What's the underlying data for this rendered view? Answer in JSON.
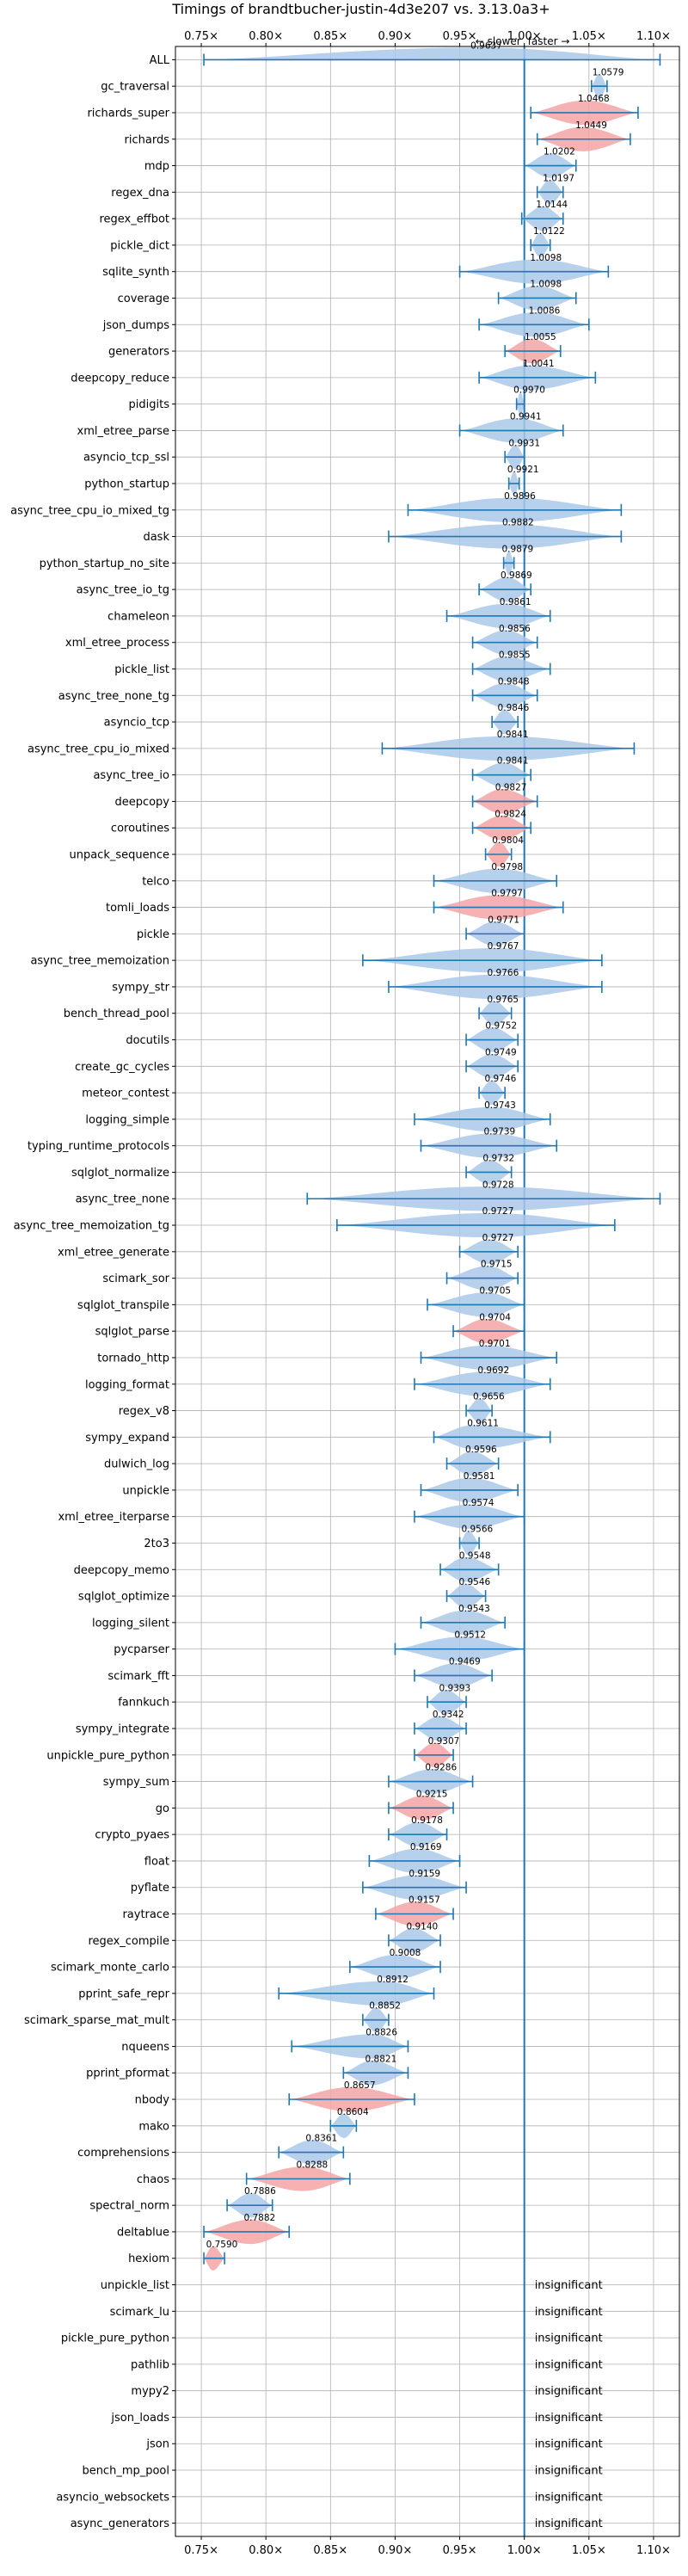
{
  "chart_data": {
    "type": "violin",
    "title": "Timings of brandtbucher-justin-4d3e207 vs. 3.13.0a3+",
    "xlabel": "",
    "ylabel": "",
    "xlim": [
      0.73,
      1.12
    ],
    "x_ticks": [
      0.75,
      0.8,
      0.85,
      0.9,
      0.95,
      1.0,
      1.05,
      1.1
    ],
    "x_tick_labels": [
      "0.75×",
      "0.80×",
      "0.85×",
      "0.90×",
      "0.95×",
      "1.00×",
      "1.05×",
      "1.10×"
    ],
    "annotation_slower": "← slower",
    "annotation_faster": "faster →",
    "grid": true,
    "colors": {
      "neutral": "#aac8e8",
      "regression": "#f5a5a5",
      "line": "#1f77b4",
      "grid": "#b0b0b0"
    },
    "benchmarks": [
      {
        "name": "ALL",
        "value": 0.9637,
        "label": "0.9637",
        "min": 0.752,
        "max": 1.105,
        "regression": false
      },
      {
        "name": "gc_traversal",
        "value": 1.0579,
        "label": "1.0579",
        "min": 1.052,
        "max": 1.064,
        "regression": false
      },
      {
        "name": "richards_super",
        "value": 1.0468,
        "label": "1.0468",
        "min": 1.005,
        "max": 1.088,
        "regression": true
      },
      {
        "name": "richards",
        "value": 1.0449,
        "label": "1.0449",
        "min": 1.01,
        "max": 1.082,
        "regression": true
      },
      {
        "name": "mdp",
        "value": 1.0202,
        "label": "1.0202",
        "min": 1.0,
        "max": 1.04,
        "regression": false
      },
      {
        "name": "regex_dna",
        "value": 1.0197,
        "label": "1.0197",
        "min": 1.01,
        "max": 1.03,
        "regression": false
      },
      {
        "name": "regex_effbot",
        "value": 1.0144,
        "label": "1.0144",
        "min": 0.998,
        "max": 1.03,
        "regression": false
      },
      {
        "name": "pickle_dict",
        "value": 1.0122,
        "label": "1.0122",
        "min": 1.005,
        "max": 1.02,
        "regression": false
      },
      {
        "name": "sqlite_synth",
        "value": 1.0098,
        "label": "1.0098",
        "min": 0.95,
        "max": 1.065,
        "regression": false
      },
      {
        "name": "coverage",
        "value": 1.0098,
        "label": "1.0098",
        "min": 0.98,
        "max": 1.04,
        "regression": false
      },
      {
        "name": "json_dumps",
        "value": 1.0086,
        "label": "1.0086",
        "min": 0.965,
        "max": 1.05,
        "regression": false
      },
      {
        "name": "generators",
        "value": 1.0055,
        "label": "1.0055",
        "min": 0.985,
        "max": 1.028,
        "regression": true
      },
      {
        "name": "deepcopy_reduce",
        "value": 1.0041,
        "label": "1.0041",
        "min": 0.965,
        "max": 1.055,
        "regression": false
      },
      {
        "name": "pidigits",
        "value": 0.997,
        "label": "0.9970",
        "min": 0.994,
        "max": 1.0,
        "regression": false
      },
      {
        "name": "xml_etree_parse",
        "value": 0.9941,
        "label": "0.9941",
        "min": 0.95,
        "max": 1.03,
        "regression": false
      },
      {
        "name": "asyncio_tcp_ssl",
        "value": 0.9931,
        "label": "0.9931",
        "min": 0.985,
        "max": 1.0,
        "regression": false
      },
      {
        "name": "python_startup",
        "value": 0.9921,
        "label": "0.9921",
        "min": 0.988,
        "max": 0.996,
        "regression": false
      },
      {
        "name": "async_tree_cpu_io_mixed_tg",
        "value": 0.9896,
        "label": "0.9896",
        "min": 0.91,
        "max": 1.075,
        "regression": false
      },
      {
        "name": "dask",
        "value": 0.9882,
        "label": "0.9882",
        "min": 0.895,
        "max": 1.075,
        "regression": false
      },
      {
        "name": "python_startup_no_site",
        "value": 0.9879,
        "label": "0.9879",
        "min": 0.984,
        "max": 0.992,
        "regression": false
      },
      {
        "name": "async_tree_io_tg",
        "value": 0.9869,
        "label": "0.9869",
        "min": 0.965,
        "max": 1.005,
        "regression": false
      },
      {
        "name": "chameleon",
        "value": 0.9861,
        "label": "0.9861",
        "min": 0.94,
        "max": 1.02,
        "regression": false
      },
      {
        "name": "xml_etree_process",
        "value": 0.9856,
        "label": "0.9856",
        "min": 0.96,
        "max": 1.01,
        "regression": false
      },
      {
        "name": "pickle_list",
        "value": 0.9855,
        "label": "0.9855",
        "min": 0.96,
        "max": 1.02,
        "regression": false
      },
      {
        "name": "async_tree_none_tg",
        "value": 0.9848,
        "label": "0.9848",
        "min": 0.96,
        "max": 1.01,
        "regression": false
      },
      {
        "name": "asyncio_tcp",
        "value": 0.9846,
        "label": "0.9846",
        "min": 0.975,
        "max": 0.995,
        "regression": false
      },
      {
        "name": "async_tree_cpu_io_mixed",
        "value": 0.9841,
        "label": "0.9841",
        "min": 0.89,
        "max": 1.085,
        "regression": false
      },
      {
        "name": "async_tree_io",
        "value": 0.9841,
        "label": "0.9841",
        "min": 0.96,
        "max": 1.005,
        "regression": false
      },
      {
        "name": "deepcopy",
        "value": 0.9827,
        "label": "0.9827",
        "min": 0.96,
        "max": 1.01,
        "regression": true
      },
      {
        "name": "coroutines",
        "value": 0.9824,
        "label": "0.9824",
        "min": 0.96,
        "max": 1.005,
        "regression": true
      },
      {
        "name": "unpack_sequence",
        "value": 0.9804,
        "label": "0.9804",
        "min": 0.97,
        "max": 0.99,
        "regression": true
      },
      {
        "name": "telco",
        "value": 0.9798,
        "label": "0.9798",
        "min": 0.93,
        "max": 1.025,
        "regression": false
      },
      {
        "name": "tomli_loads",
        "value": 0.9797,
        "label": "0.9797",
        "min": 0.93,
        "max": 1.03,
        "regression": true
      },
      {
        "name": "pickle",
        "value": 0.9771,
        "label": "0.9771",
        "min": 0.955,
        "max": 1.0,
        "regression": false
      },
      {
        "name": "async_tree_memoization",
        "value": 0.9767,
        "label": "0.9767",
        "min": 0.875,
        "max": 1.06,
        "regression": false
      },
      {
        "name": "sympy_str",
        "value": 0.9766,
        "label": "0.9766",
        "min": 0.895,
        "max": 1.06,
        "regression": false
      },
      {
        "name": "bench_thread_pool",
        "value": 0.9765,
        "label": "0.9765",
        "min": 0.965,
        "max": 0.99,
        "regression": false
      },
      {
        "name": "docutils",
        "value": 0.9752,
        "label": "0.9752",
        "min": 0.955,
        "max": 0.995,
        "regression": false
      },
      {
        "name": "create_gc_cycles",
        "value": 0.9749,
        "label": "0.9749",
        "min": 0.955,
        "max": 0.995,
        "regression": false
      },
      {
        "name": "meteor_contest",
        "value": 0.9746,
        "label": "0.9746",
        "min": 0.965,
        "max": 0.985,
        "regression": false
      },
      {
        "name": "logging_simple",
        "value": 0.9743,
        "label": "0.9743",
        "min": 0.915,
        "max": 1.02,
        "regression": false
      },
      {
        "name": "typing_runtime_protocols",
        "value": 0.9739,
        "label": "0.9739",
        "min": 0.92,
        "max": 1.025,
        "regression": false
      },
      {
        "name": "sqlglot_normalize",
        "value": 0.9732,
        "label": "0.9732",
        "min": 0.955,
        "max": 0.99,
        "regression": false
      },
      {
        "name": "async_tree_none",
        "value": 0.9728,
        "label": "0.9728",
        "min": 0.832,
        "max": 1.105,
        "regression": false
      },
      {
        "name": "async_tree_memoization_tg",
        "value": 0.9727,
        "label": "0.9727",
        "min": 0.855,
        "max": 1.07,
        "regression": false
      },
      {
        "name": "xml_etree_generate",
        "value": 0.9727,
        "label": "0.9727",
        "min": 0.95,
        "max": 0.995,
        "regression": false
      },
      {
        "name": "scimark_sor",
        "value": 0.9715,
        "label": "0.9715",
        "min": 0.94,
        "max": 0.995,
        "regression": false
      },
      {
        "name": "sqlglot_transpile",
        "value": 0.9705,
        "label": "0.9705",
        "min": 0.925,
        "max": 1.0,
        "regression": false
      },
      {
        "name": "sqlglot_parse",
        "value": 0.9704,
        "label": "0.9704",
        "min": 0.945,
        "max": 1.0,
        "regression": true
      },
      {
        "name": "tornado_http",
        "value": 0.9701,
        "label": "0.9701",
        "min": 0.92,
        "max": 1.025,
        "regression": false
      },
      {
        "name": "logging_format",
        "value": 0.9692,
        "label": "0.9692",
        "min": 0.915,
        "max": 1.02,
        "regression": false
      },
      {
        "name": "regex_v8",
        "value": 0.9656,
        "label": "0.9656",
        "min": 0.955,
        "max": 0.975,
        "regression": false
      },
      {
        "name": "sympy_expand",
        "value": 0.9611,
        "label": "0.9611",
        "min": 0.93,
        "max": 1.02,
        "regression": false
      },
      {
        "name": "dulwich_log",
        "value": 0.9596,
        "label": "0.9596",
        "min": 0.94,
        "max": 0.98,
        "regression": false
      },
      {
        "name": "unpickle",
        "value": 0.9581,
        "label": "0.9581",
        "min": 0.92,
        "max": 0.995,
        "regression": false
      },
      {
        "name": "xml_etree_iterparse",
        "value": 0.9574,
        "label": "0.9574",
        "min": 0.915,
        "max": 1.0,
        "regression": false
      },
      {
        "name": "2to3",
        "value": 0.9566,
        "label": "0.9566",
        "min": 0.95,
        "max": 0.965,
        "regression": false
      },
      {
        "name": "deepcopy_memo",
        "value": 0.9548,
        "label": "0.9548",
        "min": 0.935,
        "max": 0.98,
        "regression": false
      },
      {
        "name": "sqlglot_optimize",
        "value": 0.9546,
        "label": "0.9546",
        "min": 0.94,
        "max": 0.97,
        "regression": false
      },
      {
        "name": "logging_silent",
        "value": 0.9543,
        "label": "0.9543",
        "min": 0.92,
        "max": 0.985,
        "regression": false
      },
      {
        "name": "pycparser",
        "value": 0.9512,
        "label": "0.9512",
        "min": 0.9,
        "max": 1.0,
        "regression": false
      },
      {
        "name": "scimark_fft",
        "value": 0.9469,
        "label": "0.9469",
        "min": 0.915,
        "max": 0.975,
        "regression": false
      },
      {
        "name": "fannkuch",
        "value": 0.9393,
        "label": "0.9393",
        "min": 0.925,
        "max": 0.955,
        "regression": false
      },
      {
        "name": "sympy_integrate",
        "value": 0.9342,
        "label": "0.9342",
        "min": 0.915,
        "max": 0.955,
        "regression": false
      },
      {
        "name": "unpickle_pure_python",
        "value": 0.9307,
        "label": "0.9307",
        "min": 0.915,
        "max": 0.945,
        "regression": true
      },
      {
        "name": "sympy_sum",
        "value": 0.9286,
        "label": "0.9286",
        "min": 0.895,
        "max": 0.96,
        "regression": false
      },
      {
        "name": "go",
        "value": 0.9215,
        "label": "0.9215",
        "min": 0.895,
        "max": 0.945,
        "regression": true
      },
      {
        "name": "crypto_pyaes",
        "value": 0.9178,
        "label": "0.9178",
        "min": 0.895,
        "max": 0.94,
        "regression": false
      },
      {
        "name": "float",
        "value": 0.9169,
        "label": "0.9169",
        "min": 0.88,
        "max": 0.95,
        "regression": false
      },
      {
        "name": "pyflate",
        "value": 0.9159,
        "label": "0.9159",
        "min": 0.875,
        "max": 0.955,
        "regression": false
      },
      {
        "name": "raytrace",
        "value": 0.9157,
        "label": "0.9157",
        "min": 0.885,
        "max": 0.945,
        "regression": true
      },
      {
        "name": "regex_compile",
        "value": 0.914,
        "label": "0.9140",
        "min": 0.895,
        "max": 0.935,
        "regression": false
      },
      {
        "name": "scimark_monte_carlo",
        "value": 0.9008,
        "label": "0.9008",
        "min": 0.865,
        "max": 0.935,
        "regression": false
      },
      {
        "name": "pprint_safe_repr",
        "value": 0.8912,
        "label": "0.8912",
        "min": 0.81,
        "max": 0.93,
        "regression": false
      },
      {
        "name": "scimark_sparse_mat_mult",
        "value": 0.8852,
        "label": "0.8852",
        "min": 0.875,
        "max": 0.895,
        "regression": false
      },
      {
        "name": "nqueens",
        "value": 0.8826,
        "label": "0.8826",
        "min": 0.82,
        "max": 0.91,
        "regression": false
      },
      {
        "name": "pprint_pformat",
        "value": 0.8821,
        "label": "0.8821",
        "min": 0.86,
        "max": 0.91,
        "regression": false
      },
      {
        "name": "nbody",
        "value": 0.8657,
        "label": "0.8657",
        "min": 0.818,
        "max": 0.915,
        "regression": true
      },
      {
        "name": "mako",
        "value": 0.8604,
        "label": "0.8604",
        "min": 0.85,
        "max": 0.87,
        "regression": false
      },
      {
        "name": "comprehensions",
        "value": 0.8361,
        "label": "0.8361",
        "min": 0.81,
        "max": 0.86,
        "regression": false
      },
      {
        "name": "chaos",
        "value": 0.8288,
        "label": "0.8288",
        "min": 0.785,
        "max": 0.865,
        "regression": true
      },
      {
        "name": "spectral_norm",
        "value": 0.7886,
        "label": "0.7886",
        "min": 0.77,
        "max": 0.805,
        "regression": false
      },
      {
        "name": "deltablue",
        "value": 0.7882,
        "label": "0.7882",
        "min": 0.752,
        "max": 0.818,
        "regression": true
      },
      {
        "name": "hexiom",
        "value": 0.759,
        "label": "0.7590",
        "min": 0.752,
        "max": 0.768,
        "regression": true
      },
      {
        "name": "unpickle_list",
        "value": null,
        "label": "insignificant"
      },
      {
        "name": "scimark_lu",
        "value": null,
        "label": "insignificant"
      },
      {
        "name": "pickle_pure_python",
        "value": null,
        "label": "insignificant"
      },
      {
        "name": "pathlib",
        "value": null,
        "label": "insignificant"
      },
      {
        "name": "mypy2",
        "value": null,
        "label": "insignificant"
      },
      {
        "name": "json_loads",
        "value": null,
        "label": "insignificant"
      },
      {
        "name": "json",
        "value": null,
        "label": "insignificant"
      },
      {
        "name": "bench_mp_pool",
        "value": null,
        "label": "insignificant"
      },
      {
        "name": "asyncio_websockets",
        "value": null,
        "label": "insignificant"
      },
      {
        "name": "async_generators",
        "value": null,
        "label": "insignificant"
      }
    ]
  }
}
